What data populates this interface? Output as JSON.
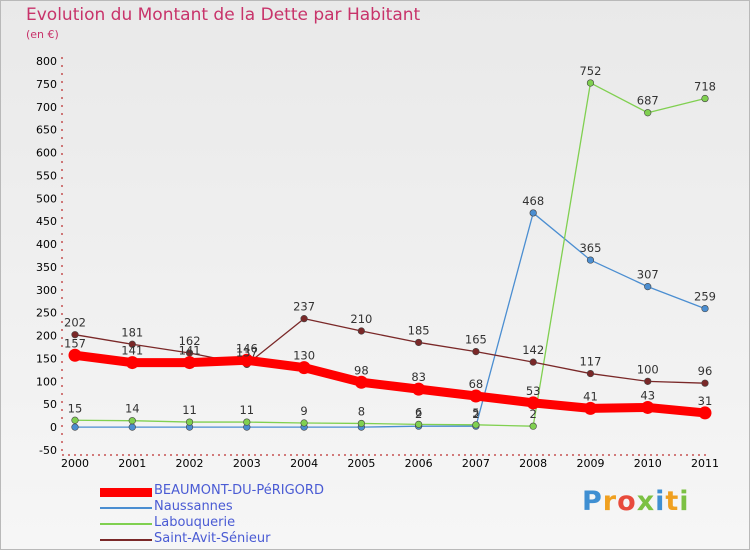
{
  "title": "Evolution du Montant de la Dette par Habitant",
  "subtitle": "(en €)",
  "logo": "Proxiti",
  "chart_data": {
    "type": "line",
    "x": [
      "2000",
      "2001",
      "2002",
      "2003",
      "2004",
      "2005",
      "2006",
      "2007",
      "2008",
      "2009",
      "2010",
      "2011"
    ],
    "y_ticks": [
      800,
      750,
      700,
      650,
      600,
      550,
      500,
      450,
      400,
      350,
      300,
      250,
      200,
      150,
      100,
      50,
      0,
      -50
    ],
    "ylim": [
      -50,
      800
    ],
    "grid": false,
    "legend_position": "bottom-left",
    "series": [
      {
        "name": "BEAUMONT-DU-PéRIGORD",
        "color": "#ff0000",
        "values": [
          157,
          141,
          141,
          146,
          130,
          98,
          83,
          68,
          53,
          41,
          43,
          31
        ],
        "labels": [
          "157",
          "141",
          "141",
          "146",
          "130",
          "98",
          "83",
          "68",
          "53",
          "41",
          "43",
          "31"
        ]
      },
      {
        "name": "Naussannes",
        "color": "#4b8ed1",
        "values": [
          0,
          0,
          0,
          0,
          0,
          0,
          2,
          2,
          468,
          365,
          307,
          259
        ],
        "labels": [
          "",
          "",
          "",
          "",
          "",
          "",
          "2",
          "2",
          "468",
          "365",
          "307",
          "259"
        ]
      },
      {
        "name": "Labouquerie",
        "color": "#80d050",
        "values": [
          15,
          14,
          11,
          11,
          9,
          8,
          6,
          5,
          2,
          752,
          687,
          718
        ],
        "labels": [
          "15",
          "14",
          "11",
          "11",
          "9",
          "8",
          "6",
          "5",
          "2",
          "752",
          "687",
          "718"
        ]
      },
      {
        "name": "Saint-Avit-Sénieur",
        "color": "#7a2828",
        "values": [
          202,
          181,
          162,
          137,
          237,
          210,
          185,
          165,
          142,
          117,
          100,
          96
        ],
        "labels": [
          "202",
          "181",
          "162",
          "137",
          "237",
          "210",
          "185",
          "165",
          "142",
          "117",
          "100",
          "96"
        ]
      }
    ]
  }
}
